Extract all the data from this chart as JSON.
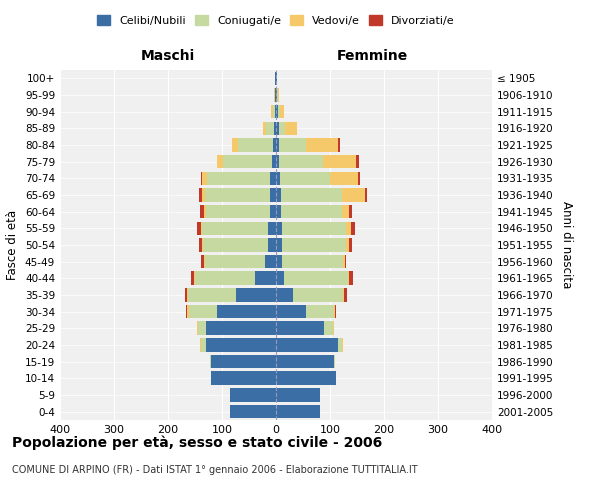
{
  "age_groups": [
    "100+",
    "95-99",
    "90-94",
    "85-89",
    "80-84",
    "75-79",
    "70-74",
    "65-69",
    "60-64",
    "55-59",
    "50-54",
    "45-49",
    "40-44",
    "35-39",
    "30-34",
    "25-29",
    "20-24",
    "15-19",
    "10-14",
    "5-9",
    "0-4"
  ],
  "birth_years": [
    "≤ 1905",
    "1906-1910",
    "1911-1915",
    "1916-1920",
    "1921-1925",
    "1926-1930",
    "1931-1935",
    "1936-1940",
    "1941-1945",
    "1946-1950",
    "1951-1955",
    "1956-1960",
    "1961-1965",
    "1966-1970",
    "1971-1975",
    "1976-1980",
    "1981-1985",
    "1986-1990",
    "1991-1995",
    "1996-2000",
    "2001-2005"
  ],
  "male": {
    "celibi": [
      1,
      1,
      2,
      4,
      5,
      8,
      12,
      12,
      12,
      15,
      15,
      20,
      38,
      75,
      110,
      130,
      130,
      120,
      120,
      85,
      85
    ],
    "coniugati": [
      0,
      1,
      4,
      15,
      65,
      90,
      115,
      120,
      118,
      122,
      120,
      112,
      112,
      88,
      52,
      14,
      8,
      2,
      0,
      0,
      0
    ],
    "vedovi": [
      0,
      1,
      3,
      5,
      12,
      12,
      10,
      5,
      4,
      2,
      2,
      2,
      2,
      2,
      2,
      2,
      2,
      0,
      0,
      0,
      0
    ],
    "divorziati": [
      0,
      0,
      0,
      0,
      0,
      0,
      2,
      5,
      6,
      7,
      5,
      5,
      5,
      3,
      3,
      0,
      0,
      0,
      0,
      0,
      0
    ]
  },
  "female": {
    "nubili": [
      1,
      2,
      3,
      5,
      5,
      5,
      8,
      10,
      10,
      12,
      12,
      12,
      15,
      32,
      55,
      88,
      115,
      108,
      112,
      82,
      82
    ],
    "coniugate": [
      0,
      1,
      4,
      12,
      50,
      82,
      92,
      112,
      112,
      118,
      118,
      112,
      118,
      92,
      52,
      18,
      8,
      2,
      0,
      0,
      0
    ],
    "vedove": [
      0,
      2,
      8,
      22,
      60,
      62,
      52,
      42,
      14,
      8,
      5,
      3,
      2,
      2,
      2,
      2,
      2,
      0,
      0,
      0,
      0
    ],
    "divorziate": [
      0,
      0,
      0,
      0,
      4,
      4,
      3,
      4,
      4,
      8,
      5,
      3,
      8,
      5,
      3,
      0,
      0,
      0,
      0,
      0,
      0
    ]
  },
  "colors": {
    "celibi": "#3a6ea5",
    "coniugati": "#c5d9a0",
    "vedovi": "#f5c96a",
    "divorziati": "#c0392b"
  },
  "legend_labels": [
    "Celibi/Nubili",
    "Coniugati/e",
    "Vedovi/e",
    "Divorziati/e"
  ],
  "title_main": "Popolazione per età, sesso e stato civile - 2006",
  "title_sub": "COMUNE DI ARPINO (FR) - Dati ISTAT 1° gennaio 2006 - Elaborazione TUTTITALIA.IT",
  "ylabel_left": "Fasce di età",
  "ylabel_right": "Anni di nascita",
  "xlabel_maschi": "Maschi",
  "xlabel_femmine": "Femmine",
  "xlim": 400,
  "bg_color": "#ffffff"
}
